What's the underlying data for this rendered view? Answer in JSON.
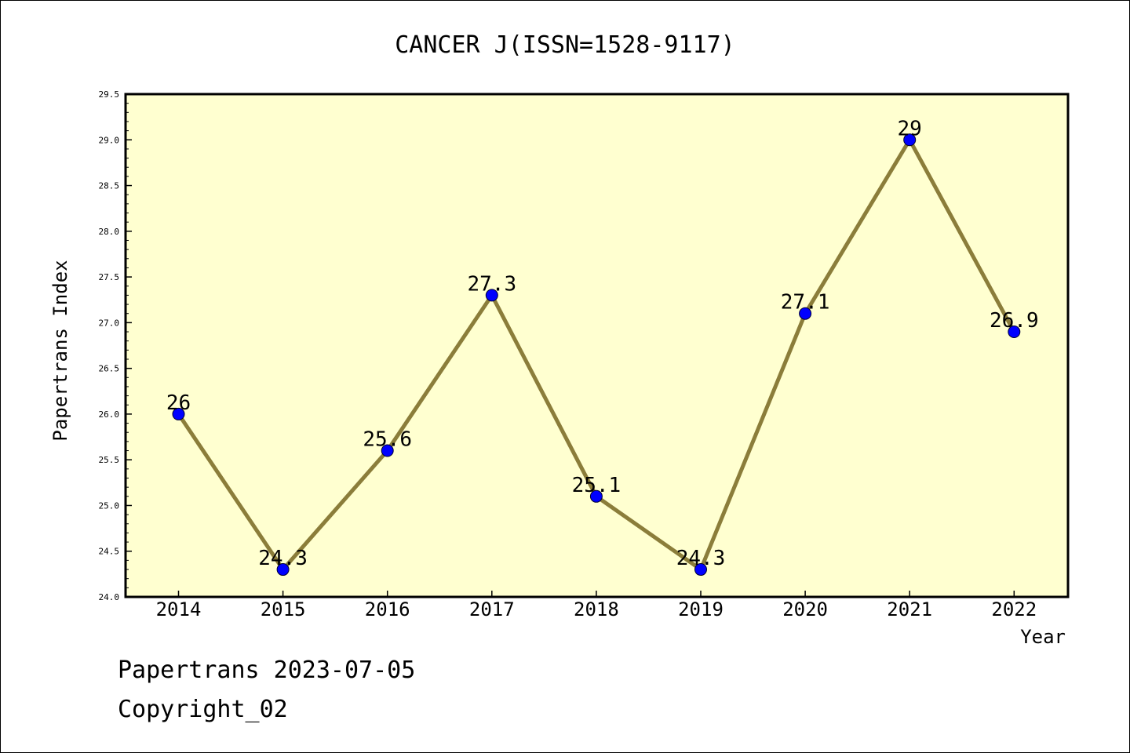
{
  "chart_data": {
    "type": "line",
    "title": "CANCER J(ISSN=1528-9117)",
    "xlabel": "Year",
    "ylabel": "Papertrans Index",
    "categories": [
      "2014",
      "2015",
      "2016",
      "2017",
      "2018",
      "2019",
      "2020",
      "2021",
      "2022"
    ],
    "series": [
      {
        "values": [
          26,
          24.3,
          25.6,
          27.3,
          25.1,
          24.3,
          27.1,
          29,
          26.9
        ],
        "data_labels": [
          "26",
          "24.3",
          "25.6",
          "27.3",
          "25.1",
          "24.3",
          "27.1",
          "29",
          "26.9"
        ]
      }
    ],
    "ylim": [
      24.0,
      29.5
    ],
    "yticks": [
      "24.0",
      "24.5",
      "25.0",
      "25.5",
      "26.0",
      "26.5",
      "27.0",
      "27.5",
      "28.0",
      "28.5",
      "29.0",
      "29.5"
    ],
    "grid": false,
    "colors": {
      "plot_background": "#ffffd0",
      "line": "#8b7d3a",
      "marker": "#0000ff"
    }
  },
  "footer": {
    "line1": "Papertrans 2023-07-05",
    "line2": "Copyright_02"
  }
}
